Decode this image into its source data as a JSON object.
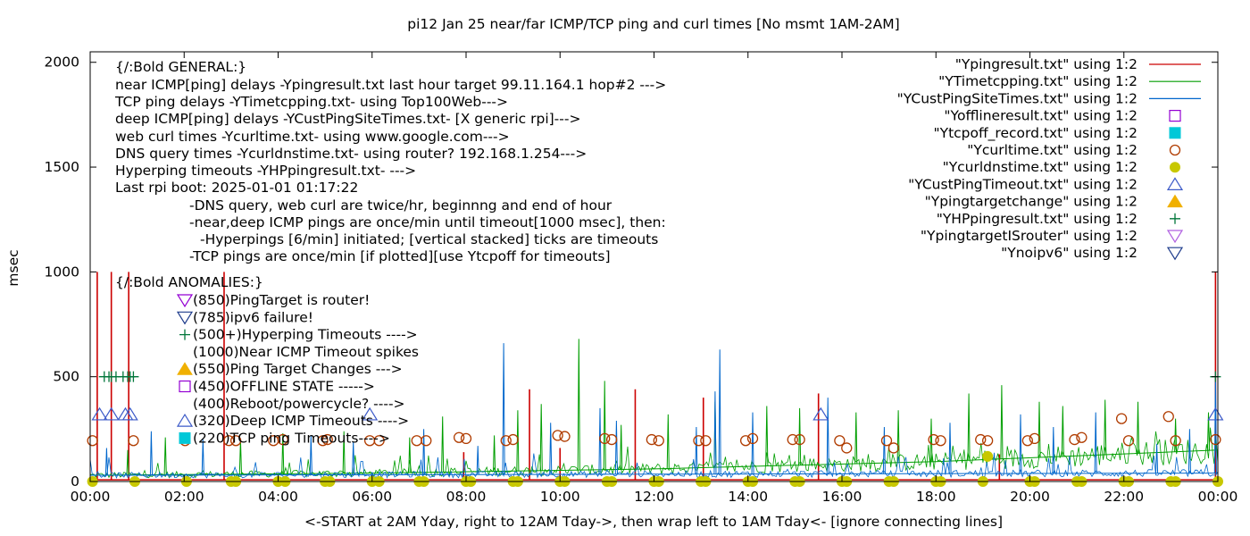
{
  "chart_data": {
    "type": "line",
    "title": "pi12 Jan 25  near/far ICMP/TCP ping and curl times [No msmt 1AM-2AM]",
    "xlabel": "<-START at 2AM Yday, right to 12AM Tday->, then wrap left to 1AM Tday<- [ignore connecting lines]",
    "ylabel": "msec",
    "xlim": [
      0,
      24
    ],
    "ylim": [
      0,
      2050
    ],
    "grid": false,
    "legend_position": "top-right",
    "x_ticks": [
      "00:00",
      "02:00",
      "04:00",
      "06:00",
      "08:00",
      "10:00",
      "12:00",
      "14:00",
      "16:00",
      "18:00",
      "20:00",
      "22:00",
      "00:00"
    ],
    "x_tick_values": [
      0,
      2,
      4,
      6,
      8,
      10,
      12,
      14,
      16,
      18,
      20,
      22,
      24
    ],
    "y_ticks": [
      "0",
      "500",
      "1000",
      "1500",
      "2000"
    ],
    "y_tick_values": [
      0,
      500,
      1000,
      1500,
      2000
    ],
    "annotations_general": [
      "{/:Bold GENERAL:}",
      "near ICMP[ping] delays -Ypingresult.txt last hour target 99.11.164.1 hop#2 --->",
      "TCP ping delays -YTimetcpping.txt- using Top100Web--->",
      "deep ICMP[ping] delays -YCustPingSiteTimes.txt- [X generic rpi]--->",
      "web curl times -Ycurltime.txt- using www.google.com--->",
      "DNS query times -Ycurldnstime.txt- using router? 192.168.1.254--->",
      "Hyperping timeouts -YHPpingresult.txt- --->",
      "Last rpi boot: 2025-01-01 01:17:22",
      "-DNS query, web curl are twice/hr, beginnng and end of hour",
      "-near,deep ICMP pings are once/min until timeout[1000 msec], then:",
      "-Hyperpings [6/min] initiated; [vertical stacked] ticks are timeouts",
      "-TCP pings are once/min [if plotted][use Ytcpoff for timeouts]"
    ],
    "annotations_anomalies_title": "{/:Bold ANOMALIES:}",
    "annotations_anomalies": [
      {
        "text": "(850)PingTarget is router!",
        "marker": "triangle-down",
        "color": "#9400d3"
      },
      {
        "text": "(785)ipv6 failure!",
        "marker": "triangle-down",
        "color": "#1e3c8c"
      },
      {
        "text": "(500+)Hyperping Timeouts ---->",
        "marker": "plus",
        "color": "#00763a"
      },
      {
        "text": "(1000)Near ICMP Timeout spikes",
        "marker": "",
        "color": ""
      },
      {
        "text": "(550)Ping Target Changes --->",
        "marker": "triangle-up-filled",
        "color": "#f0b000"
      },
      {
        "text": "(450)OFFLINE STATE ----->",
        "marker": "square",
        "color": "#9400d3"
      },
      {
        "text": "(400)Reboot/powercycle? ---->",
        "marker": "",
        "color": ""
      },
      {
        "text": "(320)Deep ICMP Timeouts ---->",
        "marker": "triangle-up",
        "color": "#3c5ac8"
      },
      {
        "text": "(220)TCP ping Timeouts---->",
        "marker": "square-filled",
        "color": "#00c8d8"
      }
    ],
    "legend": [
      {
        "label": "\"Ypingresult.txt\" using 1:2",
        "marker": "line",
        "color": "#cc0000"
      },
      {
        "label": "\"YTimetcpping.txt\" using 1:2",
        "marker": "line",
        "color": "#009e00"
      },
      {
        "label": "\"YCustPingSiteTimes.txt\" using 1:2",
        "marker": "line",
        "color": "#0066cc"
      },
      {
        "label": "\"Yofflineresult.txt\" using 1:2",
        "marker": "square",
        "color": "#9400d3"
      },
      {
        "label": "\"Ytcpoff_record.txt\" using 1:2",
        "marker": "square-filled",
        "color": "#00c8d8"
      },
      {
        "label": "\"Ycurltime.txt\" using 1:2",
        "marker": "circle",
        "color": "#b03c00"
      },
      {
        "label": "\"Ycurldnstime.txt\" using 1:2",
        "marker": "circle-filled",
        "color": "#c8c800"
      },
      {
        "label": "\"YCustPingTimeout.txt\" using 1:2",
        "marker": "triangle-up",
        "color": "#3c5ac8"
      },
      {
        "label": "\"Ypingtargetchange\" using 1:2",
        "marker": "triangle-up-filled",
        "color": "#f0b000"
      },
      {
        "label": "\"YHPpingresult.txt\" using 1:2",
        "marker": "plus",
        "color": "#00763a"
      },
      {
        "label": "\"YpingtargetISrouter\" using 1:2",
        "marker": "triangle-down",
        "color": "#b060e0"
      },
      {
        "label": "\"Ynoipv6\" using 1:2",
        "marker": "triangle-down",
        "color": "#1e3c8c"
      }
    ],
    "series": [
      {
        "name": "\"Ypingresult.txt\" using 1:2",
        "style": "spikes",
        "color": "#cc0000",
        "baseline": 8,
        "x": [
          0.15,
          0.45,
          0.82,
          2.85,
          7.95,
          9.35,
          10.0,
          11.6,
          13.05,
          15.5,
          19.35,
          23.95
        ],
        "y": [
          1000,
          1000,
          1000,
          1000,
          140,
          440,
          160,
          440,
          400,
          420,
          130,
          1000
        ]
      },
      {
        "name": "\"YTimetcpping.txt\" using 1:2",
        "style": "noisy-line",
        "color": "#009e00",
        "trend_x": [
          0,
          6,
          12,
          18,
          24
        ],
        "trend_y": [
          30,
          40,
          60,
          95,
          150
        ],
        "spikes_x": [
          0.8,
          1.6,
          3.2,
          4.1,
          5.4,
          6.8,
          7.5,
          8.6,
          9.1,
          9.6,
          10.4,
          10.95,
          11.3,
          12.3,
          13.3,
          14.4,
          15.1,
          16.3,
          17.2,
          17.9,
          18.7,
          19.4,
          20.2,
          20.7,
          21.6,
          22.3,
          23.1,
          23.8
        ],
        "spikes_y": [
          150,
          210,
          200,
          230,
          240,
          210,
          310,
          220,
          340,
          370,
          680,
          480,
          270,
          320,
          380,
          360,
          350,
          330,
          340,
          300,
          420,
          460,
          380,
          360,
          390,
          380,
          300,
          330
        ]
      },
      {
        "name": "\"YCustPingSiteTimes.txt\" using 1:2",
        "style": "noisy-line",
        "color": "#0066cc",
        "trend_x": [
          0,
          12,
          24
        ],
        "trend_y": [
          30,
          35,
          40
        ],
        "spikes_x": [
          0.35,
          1.3,
          2.4,
          4.7,
          5.6,
          7.1,
          8.25,
          8.8,
          9.8,
          10.85,
          11.2,
          12.9,
          13.4,
          13.3,
          14.1,
          15.7,
          16.9,
          18.3,
          19.8,
          20.5,
          21.4,
          22.7,
          23.4,
          23.95
        ],
        "spikes_y": [
          160,
          240,
          200,
          220,
          190,
          250,
          170,
          660,
          280,
          350,
          290,
          260,
          630,
          430,
          330,
          400,
          260,
          280,
          320,
          260,
          330,
          180,
          250,
          520
        ]
      },
      {
        "name": "\"Ycurltime.txt\" using 1:2",
        "style": "points",
        "marker": "circle",
        "color": "#b03c00",
        "x": [
          0.05,
          0.92,
          2.02,
          2.95,
          3.1,
          3.9,
          4.1,
          4.95,
          5.05,
          5.95,
          6.15,
          6.95,
          7.15,
          7.85,
          8.0,
          8.85,
          9.0,
          9.95,
          10.1,
          10.95,
          11.1,
          11.95,
          12.1,
          12.95,
          13.1,
          13.95,
          14.1,
          14.95,
          15.1,
          15.95,
          16.1,
          16.95,
          17.1,
          17.95,
          18.1,
          18.95,
          19.1,
          19.95,
          20.1,
          20.95,
          21.1,
          21.95,
          22.1,
          22.95,
          23.1,
          23.95
        ],
        "y": [
          195,
          195,
          195,
          195,
          195,
          195,
          200,
          195,
          200,
          195,
          195,
          195,
          195,
          210,
          205,
          195,
          200,
          220,
          215,
          205,
          200,
          200,
          195,
          195,
          195,
          195,
          205,
          200,
          200,
          195,
          160,
          195,
          160,
          200,
          195,
          200,
          195,
          195,
          205,
          200,
          210,
          300,
          195,
          310,
          195,
          200
        ]
      },
      {
        "name": "\"Ycurldnstime.txt\" using 1:2",
        "style": "points",
        "marker": "circle-filled",
        "color": "#c8c800",
        "x": [
          0.05,
          0.95,
          2.05,
          3.0,
          3.1,
          4.0,
          4.15,
          5.0,
          5.1,
          6.0,
          6.15,
          7.0,
          7.1,
          8.0,
          8.1,
          9.0,
          9.1,
          10.0,
          10.1,
          11.0,
          11.1,
          12.0,
          12.1,
          13.0,
          13.1,
          14.0,
          14.1,
          15.0,
          15.1,
          16.0,
          16.1,
          17.0,
          17.1,
          18.0,
          18.1,
          19.0,
          19.1,
          20.0,
          20.1,
          21.0,
          21.1,
          22.0,
          22.1,
          23.0,
          23.1,
          24.0
        ],
        "y": [
          0,
          0,
          0,
          0,
          0,
          0,
          0,
          0,
          0,
          0,
          0,
          0,
          0,
          0,
          0,
          0,
          0,
          0,
          0,
          0,
          0,
          0,
          0,
          0,
          0,
          0,
          0,
          0,
          0,
          0,
          0,
          0,
          0,
          0,
          0,
          0,
          120,
          0,
          0,
          0,
          0,
          0,
          0,
          0,
          0,
          0
        ]
      },
      {
        "name": "\"YCustPingTimeout.txt\" using 1:2",
        "style": "points",
        "marker": "triangle-up",
        "color": "#3c5ac8",
        "x": [
          0.2,
          0.45,
          0.75,
          0.85,
          5.95,
          15.55,
          23.95
        ],
        "y": [
          320,
          320,
          320,
          320,
          320,
          320,
          320
        ]
      },
      {
        "name": "\"YHPpingresult.txt\" using 1:2",
        "style": "points",
        "marker": "plus",
        "color": "#00763a",
        "x": [
          0.3,
          0.4,
          0.45,
          0.55,
          0.7,
          0.8,
          0.85,
          0.92,
          23.95
        ],
        "y": [
          500,
          500,
          500,
          500,
          500,
          500,
          500,
          500,
          500
        ]
      }
    ]
  }
}
